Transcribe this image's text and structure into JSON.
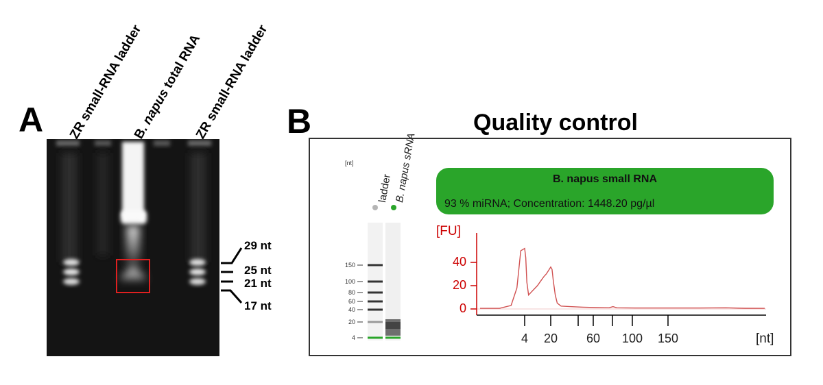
{
  "panel_a": {
    "letter": "A",
    "lanes": [
      {
        "prefix": "ZR small-RNA ladder",
        "italic": "",
        "suffix": ""
      },
      {
        "prefix": "B. ",
        "italic": "napus",
        "suffix": " total RNA"
      },
      {
        "prefix": "ZR small-RNA ladder",
        "italic": "",
        "suffix": ""
      }
    ],
    "size_markers": [
      "29 nt",
      "25 nt",
      "21 nt",
      "17 nt"
    ],
    "highlight_color": "#e02020"
  },
  "panel_b": {
    "letter": "B",
    "title": "Quality control",
    "virtual_gel": {
      "unit": "[nt]",
      "lane_labels": [
        "ladder",
        "B. napus sRNA"
      ],
      "ladder_ticks": [
        "150",
        "100",
        "80",
        "60",
        "40",
        "20",
        "4"
      ]
    },
    "sample_box": {
      "name": "B. napus small RNA",
      "stats": "93 % miRNA; Concentration: 1448.20 pg/µl",
      "color": "#2aa52a"
    },
    "electropherogram": {
      "y_unit": "[FU]",
      "x_unit": "[nt]",
      "y_ticks": [
        "0",
        "20",
        "40"
      ],
      "x_ticks": [
        "4",
        "20",
        "60",
        "100",
        "150"
      ],
      "axis_color": "#cc0000",
      "trace_color": "#d05050"
    }
  },
  "chart_data": {
    "type": "line",
    "x_label": "[nt]",
    "y_label": "[FU]",
    "y_range": [
      0,
      60
    ],
    "peaks": [
      {
        "size_nt": 4,
        "fu": 52
      },
      {
        "size_nt": 20,
        "fu": 36
      }
    ],
    "points": [
      [
        0,
        0.5
      ],
      [
        0.5,
        0.5
      ],
      [
        0.8,
        3
      ],
      [
        0.95,
        18
      ],
      [
        1.05,
        50
      ],
      [
        1.15,
        52
      ],
      [
        1.25,
        44
      ],
      [
        1.35,
        23
      ],
      [
        1.5,
        12
      ],
      [
        1.7,
        14
      ],
      [
        2.0,
        17
      ],
      [
        2.3,
        20
      ],
      [
        2.6,
        24
      ],
      [
        2.9,
        28
      ],
      [
        3.1,
        30
      ],
      [
        3.3,
        33
      ],
      [
        3.5,
        36
      ],
      [
        3.6,
        34
      ],
      [
        3.7,
        24
      ],
      [
        3.85,
        12
      ],
      [
        4.0,
        5
      ],
      [
        4.3,
        2.5
      ],
      [
        5,
        2
      ],
      [
        6,
        1.5
      ],
      [
        7,
        1.2
      ],
      [
        8,
        1
      ],
      [
        8.3,
        2
      ],
      [
        8.6,
        1
      ],
      [
        10,
        0.8
      ],
      [
        15,
        0.8
      ],
      [
        17,
        1
      ],
      [
        18.5,
        0.6
      ],
      [
        20,
        0.5
      ]
    ]
  }
}
